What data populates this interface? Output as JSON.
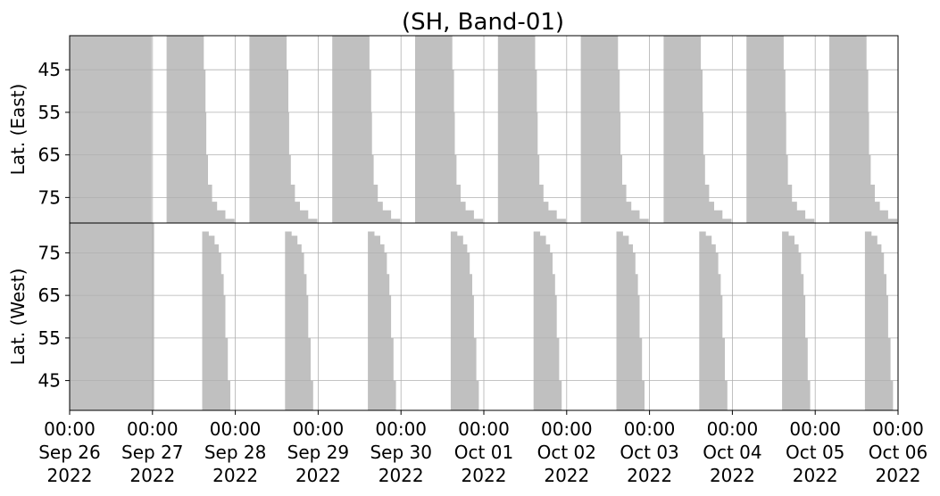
{
  "chart_data": {
    "type": "heatmap",
    "title": "(SH, Band-01)",
    "x_axis": {
      "range": [
        "2022-09-26 00:00",
        "2022-10-06 00:00"
      ],
      "ticks": [
        {
          "time": "00:00",
          "date": "Sep 26",
          "year": "2022"
        },
        {
          "time": "00:00",
          "date": "Sep 27",
          "year": "2022"
        },
        {
          "time": "00:00",
          "date": "Sep 28",
          "year": "2022"
        },
        {
          "time": "00:00",
          "date": "Sep 29",
          "year": "2022"
        },
        {
          "time": "00:00",
          "date": "Sep 30",
          "year": "2022"
        },
        {
          "time": "00:00",
          "date": "Oct 01",
          "year": "2022"
        },
        {
          "time": "00:00",
          "date": "Oct 02",
          "year": "2022"
        },
        {
          "time": "00:00",
          "date": "Oct 03",
          "year": "2022"
        },
        {
          "time": "00:00",
          "date": "Oct 04",
          "year": "2022"
        },
        {
          "time": "00:00",
          "date": "Oct 05",
          "year": "2022"
        },
        {
          "time": "00:00",
          "date": "Oct 06",
          "year": "2022"
        }
      ]
    },
    "grid": true,
    "fill_color": "#c0c0c0",
    "panels": [
      {
        "ylabel": "Lat. (East)",
        "ylim": [
          37,
          81
        ],
        "y_inverted": true,
        "yticks": [
          "45",
          "55",
          "65",
          "75"
        ],
        "full_coverage": [
          0.0,
          0.99
        ],
        "swaths": [
          {
            "start_day": 1.17,
            "latitude_bands": [
              {
                "lat": 40,
                "end_day": 1.62
              },
              {
                "lat": 45,
                "end_day": 1.64
              },
              {
                "lat": 55,
                "end_day": 1.65
              },
              {
                "lat": 65,
                "end_day": 1.67
              },
              {
                "lat": 72,
                "end_day": 1.72
              },
              {
                "lat": 76,
                "end_day": 1.78
              },
              {
                "lat": 78,
                "end_day": 1.88
              },
              {
                "lat": 80,
                "end_day": 1.99
              }
            ]
          },
          {
            "start_day": 2.17,
            "latitude_bands": [
              {
                "lat": 40,
                "end_day": 2.62
              },
              {
                "lat": 45,
                "end_day": 2.64
              },
              {
                "lat": 55,
                "end_day": 2.65
              },
              {
                "lat": 65,
                "end_day": 2.67
              },
              {
                "lat": 72,
                "end_day": 2.72
              },
              {
                "lat": 76,
                "end_day": 2.78
              },
              {
                "lat": 78,
                "end_day": 2.88
              },
              {
                "lat": 80,
                "end_day": 2.99
              }
            ]
          },
          {
            "start_day": 3.17,
            "latitude_bands": [
              {
                "lat": 40,
                "end_day": 3.62
              },
              {
                "lat": 45,
                "end_day": 3.64
              },
              {
                "lat": 55,
                "end_day": 3.65
              },
              {
                "lat": 65,
                "end_day": 3.67
              },
              {
                "lat": 72,
                "end_day": 3.72
              },
              {
                "lat": 76,
                "end_day": 3.78
              },
              {
                "lat": 78,
                "end_day": 3.88
              },
              {
                "lat": 80,
                "end_day": 3.99
              }
            ]
          },
          {
            "start_day": 4.17,
            "latitude_bands": [
              {
                "lat": 40,
                "end_day": 4.62
              },
              {
                "lat": 45,
                "end_day": 4.64
              },
              {
                "lat": 55,
                "end_day": 4.65
              },
              {
                "lat": 65,
                "end_day": 4.67
              },
              {
                "lat": 72,
                "end_day": 4.72
              },
              {
                "lat": 76,
                "end_day": 4.78
              },
              {
                "lat": 78,
                "end_day": 4.88
              },
              {
                "lat": 80,
                "end_day": 4.99
              }
            ]
          },
          {
            "start_day": 5.17,
            "latitude_bands": [
              {
                "lat": 40,
                "end_day": 5.62
              },
              {
                "lat": 45,
                "end_day": 5.64
              },
              {
                "lat": 55,
                "end_day": 5.65
              },
              {
                "lat": 65,
                "end_day": 5.67
              },
              {
                "lat": 72,
                "end_day": 5.72
              },
              {
                "lat": 76,
                "end_day": 5.78
              },
              {
                "lat": 78,
                "end_day": 5.88
              },
              {
                "lat": 80,
                "end_day": 5.99
              }
            ]
          },
          {
            "start_day": 6.17,
            "latitude_bands": [
              {
                "lat": 40,
                "end_day": 6.62
              },
              {
                "lat": 45,
                "end_day": 6.64
              },
              {
                "lat": 55,
                "end_day": 6.65
              },
              {
                "lat": 65,
                "end_day": 6.67
              },
              {
                "lat": 72,
                "end_day": 6.72
              },
              {
                "lat": 76,
                "end_day": 6.78
              },
              {
                "lat": 78,
                "end_day": 6.88
              },
              {
                "lat": 80,
                "end_day": 6.99
              }
            ]
          },
          {
            "start_day": 7.17,
            "latitude_bands": [
              {
                "lat": 40,
                "end_day": 7.62
              },
              {
                "lat": 45,
                "end_day": 7.64
              },
              {
                "lat": 55,
                "end_day": 7.65
              },
              {
                "lat": 65,
                "end_day": 7.67
              },
              {
                "lat": 72,
                "end_day": 7.72
              },
              {
                "lat": 76,
                "end_day": 7.78
              },
              {
                "lat": 78,
                "end_day": 7.88
              },
              {
                "lat": 80,
                "end_day": 7.99
              }
            ]
          },
          {
            "start_day": 8.17,
            "latitude_bands": [
              {
                "lat": 40,
                "end_day": 8.62
              },
              {
                "lat": 45,
                "end_day": 8.64
              },
              {
                "lat": 55,
                "end_day": 8.65
              },
              {
                "lat": 65,
                "end_day": 8.67
              },
              {
                "lat": 72,
                "end_day": 8.72
              },
              {
                "lat": 76,
                "end_day": 8.78
              },
              {
                "lat": 78,
                "end_day": 8.88
              },
              {
                "lat": 80,
                "end_day": 8.99
              }
            ]
          },
          {
            "start_day": 9.17,
            "latitude_bands": [
              {
                "lat": 40,
                "end_day": 9.62
              },
              {
                "lat": 45,
                "end_day": 9.64
              },
              {
                "lat": 55,
                "end_day": 9.65
              },
              {
                "lat": 65,
                "end_day": 9.67
              },
              {
                "lat": 72,
                "end_day": 9.72
              },
              {
                "lat": 76,
                "end_day": 9.78
              },
              {
                "lat": 78,
                "end_day": 9.88
              },
              {
                "lat": 80,
                "end_day": 9.99
              }
            ]
          }
        ]
      },
      {
        "ylabel": "Lat. (West)",
        "ylim": [
          38,
          82
        ],
        "y_inverted": false,
        "yticks": [
          "75",
          "65",
          "55",
          "45"
        ],
        "full_coverage": [
          0.0,
          1.02
        ],
        "swaths": [
          {
            "start_day": 1.6,
            "end_day": 2.02,
            "latitude_bands": [
              {
                "lat": 80,
                "end_day": 1.68
              },
              {
                "lat": 79,
                "end_day": 1.75
              },
              {
                "lat": 77,
                "end_day": 1.8
              },
              {
                "lat": 75,
                "end_day": 1.83
              },
              {
                "lat": 70,
                "end_day": 1.86
              },
              {
                "lat": 65,
                "end_day": 1.88
              },
              {
                "lat": 55,
                "end_day": 1.91
              },
              {
                "lat": 45,
                "end_day": 1.94
              },
              {
                "lat": 38,
                "end_day": 1.97
              }
            ]
          },
          {
            "start_day": 2.6,
            "end_day": 3.02,
            "latitude_bands": [
              {
                "lat": 80,
                "end_day": 2.68
              },
              {
                "lat": 79,
                "end_day": 2.75
              },
              {
                "lat": 77,
                "end_day": 2.8
              },
              {
                "lat": 75,
                "end_day": 2.83
              },
              {
                "lat": 70,
                "end_day": 2.86
              },
              {
                "lat": 65,
                "end_day": 2.88
              },
              {
                "lat": 55,
                "end_day": 2.91
              },
              {
                "lat": 45,
                "end_day": 2.94
              },
              {
                "lat": 38,
                "end_day": 2.97
              }
            ]
          },
          {
            "start_day": 3.6,
            "end_day": 4.02,
            "latitude_bands": [
              {
                "lat": 80,
                "end_day": 3.68
              },
              {
                "lat": 79,
                "end_day": 3.75
              },
              {
                "lat": 77,
                "end_day": 3.8
              },
              {
                "lat": 75,
                "end_day": 3.83
              },
              {
                "lat": 70,
                "end_day": 3.86
              },
              {
                "lat": 65,
                "end_day": 3.88
              },
              {
                "lat": 55,
                "end_day": 3.91
              },
              {
                "lat": 45,
                "end_day": 3.94
              },
              {
                "lat": 38,
                "end_day": 3.97
              }
            ]
          },
          {
            "start_day": 4.6,
            "end_day": 5.02,
            "latitude_bands": [
              {
                "lat": 80,
                "end_day": 4.68
              },
              {
                "lat": 79,
                "end_day": 4.75
              },
              {
                "lat": 77,
                "end_day": 4.8
              },
              {
                "lat": 75,
                "end_day": 4.83
              },
              {
                "lat": 70,
                "end_day": 4.86
              },
              {
                "lat": 65,
                "end_day": 4.88
              },
              {
                "lat": 55,
                "end_day": 4.91
              },
              {
                "lat": 45,
                "end_day": 4.94
              },
              {
                "lat": 38,
                "end_day": 4.97
              }
            ]
          },
          {
            "start_day": 5.6,
            "end_day": 6.02,
            "latitude_bands": [
              {
                "lat": 80,
                "end_day": 5.68
              },
              {
                "lat": 79,
                "end_day": 5.75
              },
              {
                "lat": 77,
                "end_day": 5.8
              },
              {
                "lat": 75,
                "end_day": 5.83
              },
              {
                "lat": 70,
                "end_day": 5.86
              },
              {
                "lat": 65,
                "end_day": 5.88
              },
              {
                "lat": 55,
                "end_day": 5.91
              },
              {
                "lat": 45,
                "end_day": 5.94
              },
              {
                "lat": 38,
                "end_day": 5.97
              }
            ]
          },
          {
            "start_day": 6.6,
            "end_day": 7.02,
            "latitude_bands": [
              {
                "lat": 80,
                "end_day": 6.68
              },
              {
                "lat": 79,
                "end_day": 6.75
              },
              {
                "lat": 77,
                "end_day": 6.8
              },
              {
                "lat": 75,
                "end_day": 6.83
              },
              {
                "lat": 70,
                "end_day": 6.86
              },
              {
                "lat": 65,
                "end_day": 6.88
              },
              {
                "lat": 55,
                "end_day": 6.91
              },
              {
                "lat": 45,
                "end_day": 6.94
              },
              {
                "lat": 38,
                "end_day": 6.97
              }
            ]
          },
          {
            "start_day": 7.6,
            "end_day": 8.02,
            "latitude_bands": [
              {
                "lat": 80,
                "end_day": 7.68
              },
              {
                "lat": 79,
                "end_day": 7.75
              },
              {
                "lat": 77,
                "end_day": 7.8
              },
              {
                "lat": 75,
                "end_day": 7.83
              },
              {
                "lat": 70,
                "end_day": 7.86
              },
              {
                "lat": 65,
                "end_day": 7.88
              },
              {
                "lat": 55,
                "end_day": 7.91
              },
              {
                "lat": 45,
                "end_day": 7.94
              },
              {
                "lat": 38,
                "end_day": 7.97
              }
            ]
          },
          {
            "start_day": 8.6,
            "end_day": 9.02,
            "latitude_bands": [
              {
                "lat": 80,
                "end_day": 8.68
              },
              {
                "lat": 79,
                "end_day": 8.75
              },
              {
                "lat": 77,
                "end_day": 8.8
              },
              {
                "lat": 75,
                "end_day": 8.83
              },
              {
                "lat": 70,
                "end_day": 8.86
              },
              {
                "lat": 65,
                "end_day": 8.88
              },
              {
                "lat": 55,
                "end_day": 8.91
              },
              {
                "lat": 45,
                "end_day": 8.94
              },
              {
                "lat": 38,
                "end_day": 8.97
              }
            ]
          },
          {
            "start_day": 9.6,
            "end_day": 10.0,
            "latitude_bands": [
              {
                "lat": 80,
                "end_day": 9.68
              },
              {
                "lat": 79,
                "end_day": 9.75
              },
              {
                "lat": 77,
                "end_day": 9.8
              },
              {
                "lat": 75,
                "end_day": 9.83
              },
              {
                "lat": 70,
                "end_day": 9.86
              },
              {
                "lat": 65,
                "end_day": 9.88
              },
              {
                "lat": 55,
                "end_day": 9.91
              },
              {
                "lat": 45,
                "end_day": 9.94
              },
              {
                "lat": 38,
                "end_day": 9.97
              }
            ]
          }
        ]
      }
    ]
  }
}
